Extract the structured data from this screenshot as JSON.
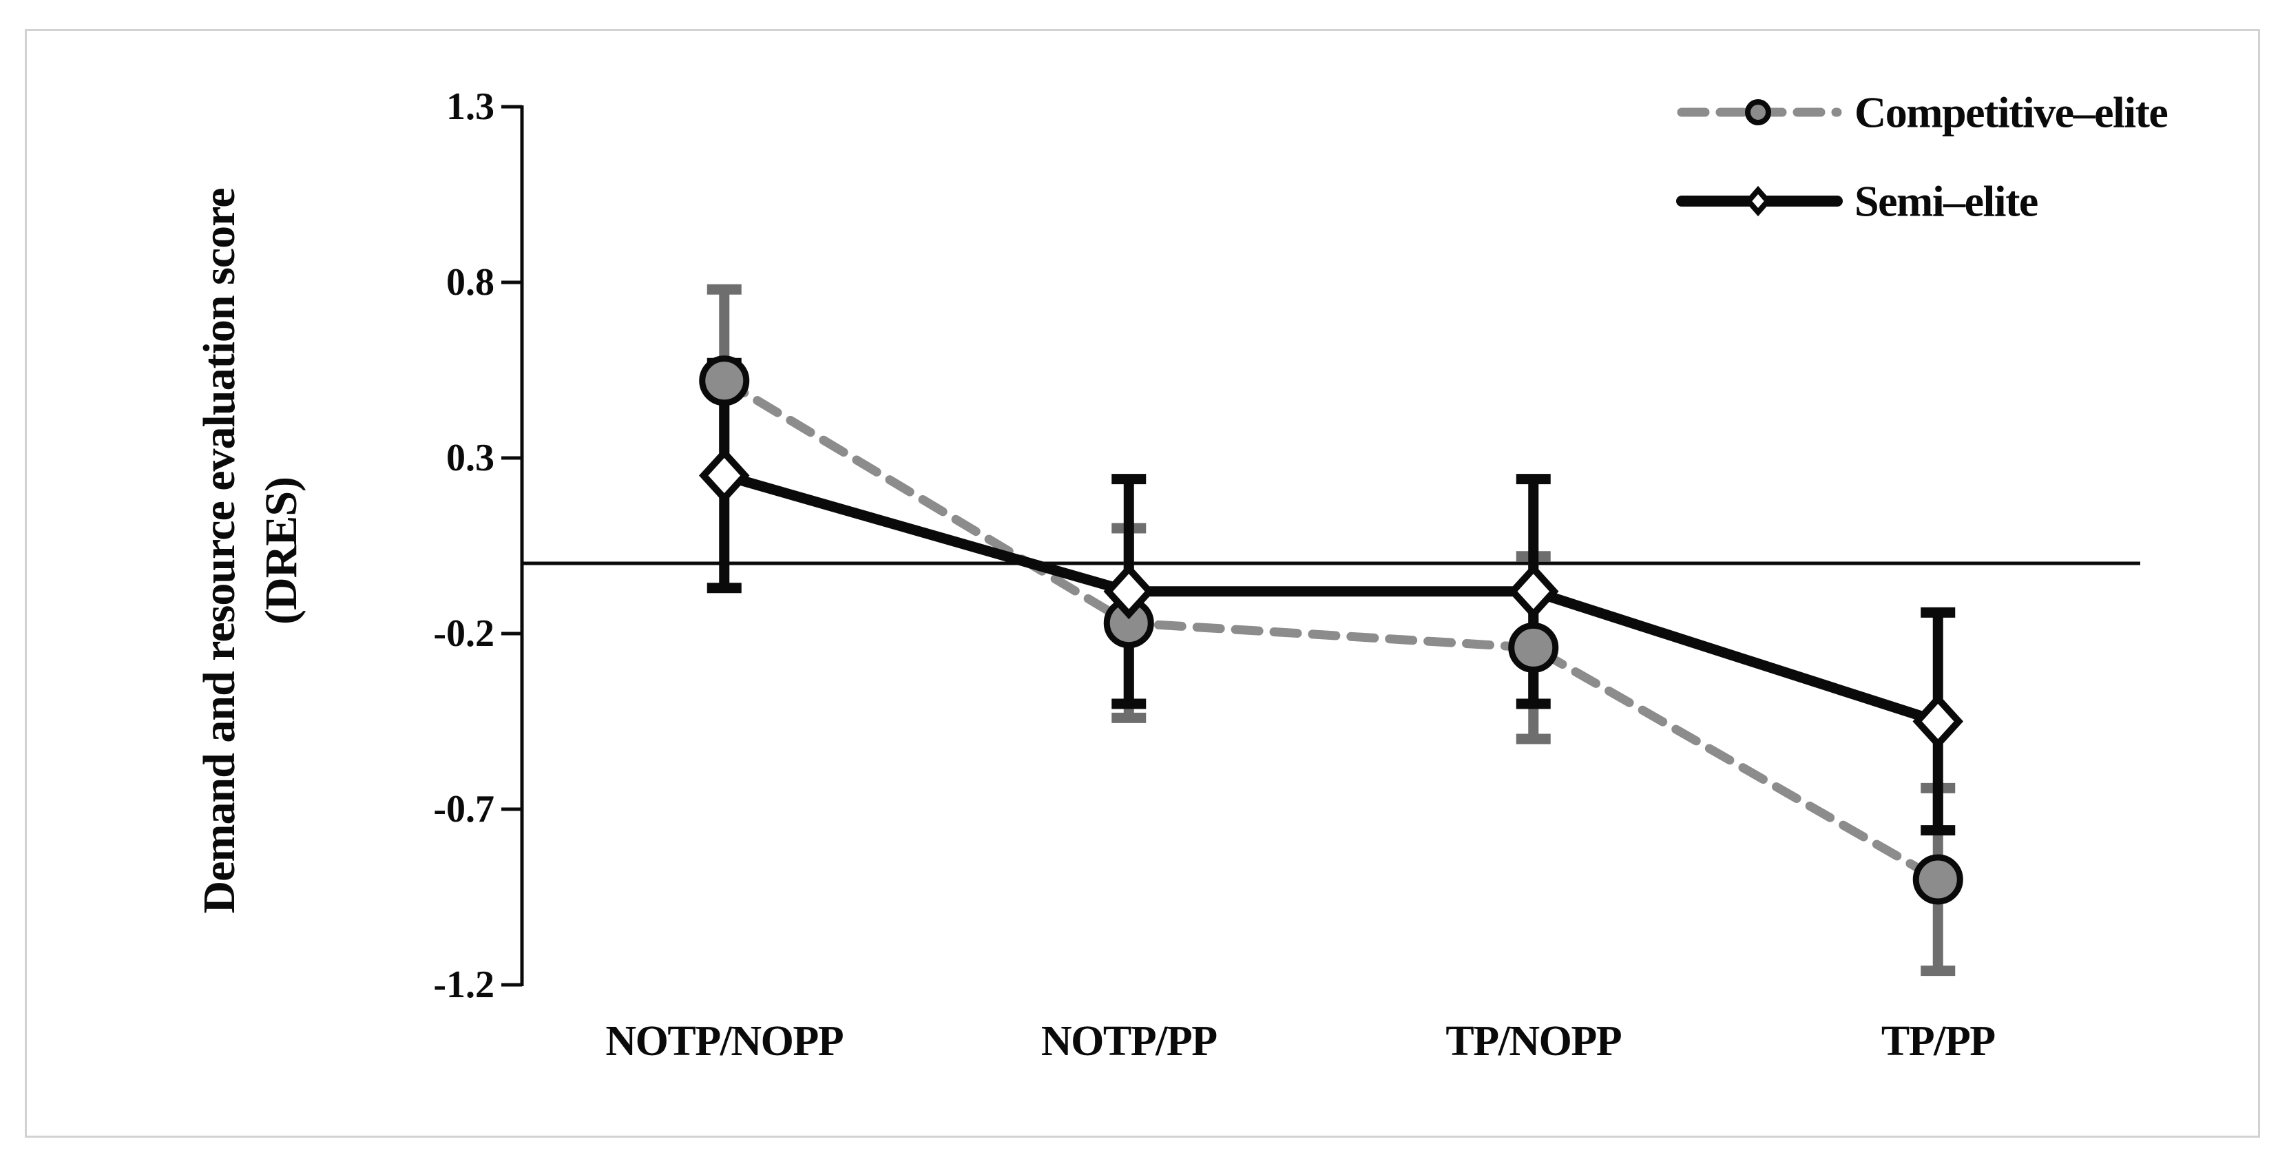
{
  "figure": {
    "type": "line chart with error bars",
    "background": "#ffffff",
    "border_color": "#d2d2d2"
  },
  "chart_data": {
    "type": "line",
    "title": "",
    "xlabel": "",
    "ylabel": "Demand and resource evaluation score (DRES)",
    "ylabel_lines": [
      "Demand and resource evaluation score",
      "(DRES)"
    ],
    "categories": [
      "NOTP/NOPP",
      "NOTP/PP",
      "TP/NOPP",
      "TP/PP"
    ],
    "series": [
      {
        "name": "Competitive–elite",
        "values": [
          0.52,
          -0.17,
          -0.24,
          -0.9
        ],
        "errors": [
          0.26,
          0.27,
          0.26,
          0.26
        ],
        "line_style": "dashed",
        "marker": "circle",
        "line_color": "#8c8c8c",
        "marker_fill": "#8c8c8c",
        "marker_stroke": "#0a0a0a",
        "error_color": "#6e6e6e"
      },
      {
        "name": "Semi–elite",
        "values": [
          0.25,
          -0.08,
          -0.08,
          -0.45
        ],
        "errors": [
          0.32,
          0.32,
          0.32,
          0.31
        ],
        "line_style": "solid",
        "marker": "diamond",
        "line_color": "#0a0a0a",
        "marker_fill": "#ffffff",
        "marker_stroke": "#0a0a0a",
        "error_color": "#0a0a0a"
      }
    ],
    "yticks": [
      1.3,
      0.8,
      0.3,
      -0.2,
      -0.7,
      -1.2
    ],
    "ytick_labels": [
      "1.3",
      "0.8",
      "0.3",
      "-0.2",
      "-0.7",
      "-1.2"
    ],
    "ylim": [
      -1.2,
      1.3
    ],
    "baseline": 0,
    "grid": false,
    "legend_position": "top-right",
    "axis_color": "#0a0a0a"
  }
}
